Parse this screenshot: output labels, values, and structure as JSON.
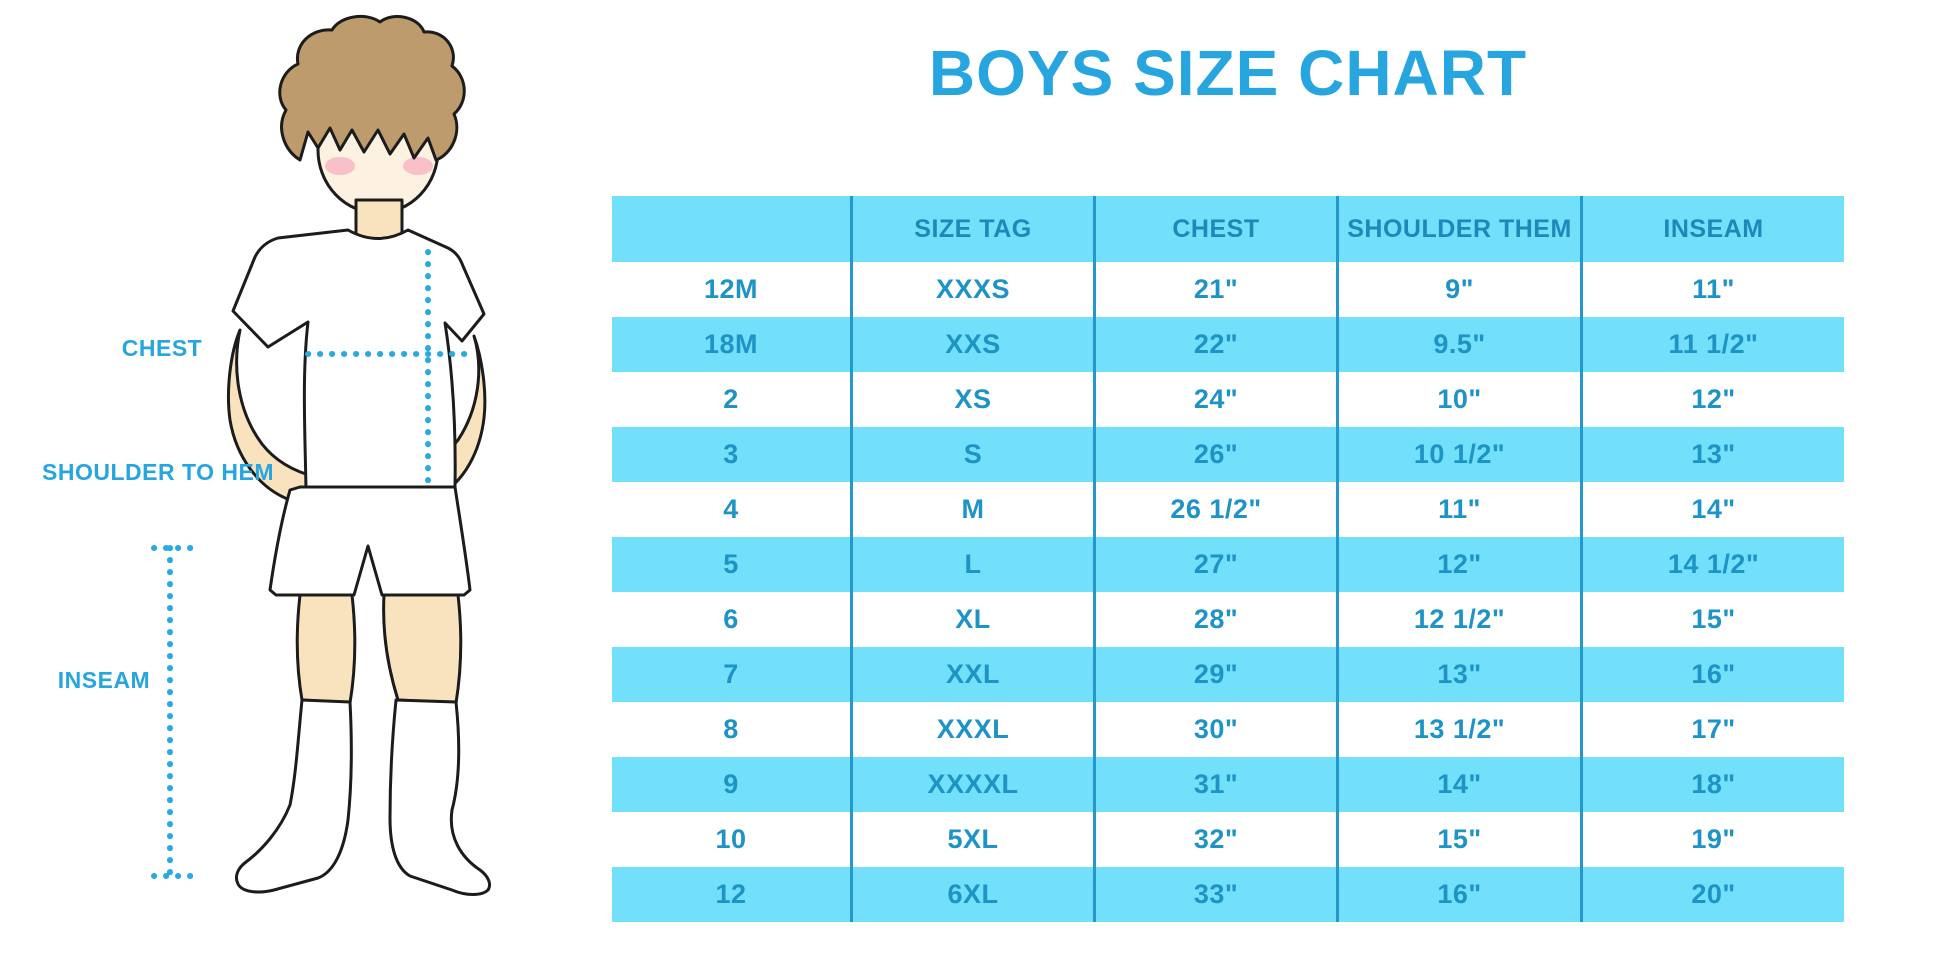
{
  "title": "BOYS SIZE CHART",
  "figure": {
    "labels": {
      "chest": "CHEST",
      "shoulder_to_hem": "SHOULDER TO HEM",
      "inseam": "INSEAM"
    }
  },
  "colors": {
    "accent_blue": "#27A5DE",
    "dotted_line_blue": "#29ABE2",
    "table_band_cyan": "#72E0FA",
    "table_text_blue": "#1D93C6",
    "header_text_blue": "#1C89B8",
    "divider_blue": "#2497CB",
    "hair_brown": "#BD9B6D",
    "skin": "#F9E3BE"
  },
  "chart_data": {
    "type": "table",
    "title": "BOYS SIZE CHART",
    "columns": [
      "",
      "SIZE TAG",
      "CHEST",
      "SHOULDER THEM",
      "INSEAM"
    ],
    "rows": [
      [
        "12M",
        "XXXS",
        "21\"",
        "9\"",
        "11\""
      ],
      [
        "18M",
        "XXS",
        "22\"",
        "9.5\"",
        "11 1/2\""
      ],
      [
        "2",
        "XS",
        "24\"",
        "10\"",
        "12\""
      ],
      [
        "3",
        "S",
        "26\"",
        "10 1/2\"",
        "13\""
      ],
      [
        "4",
        "M",
        "26 1/2\"",
        "11\"",
        "14\""
      ],
      [
        "5",
        "L",
        "27\"",
        "12\"",
        "14 1/2\""
      ],
      [
        "6",
        "XL",
        "28\"",
        "12 1/2\"",
        "15\""
      ],
      [
        "7",
        "XXL",
        "29\"",
        "13\"",
        "16\""
      ],
      [
        "8",
        "XXXL",
        "30\"",
        "13 1/2\"",
        "17\""
      ],
      [
        "9",
        "XXXXL",
        "31\"",
        "14\"",
        "18\""
      ],
      [
        "10",
        "5XL",
        "32\"",
        "15\"",
        "19\""
      ],
      [
        "12",
        "6XL",
        "33\"",
        "16\"",
        "20\""
      ]
    ],
    "layout": {
      "header_fill": "cyan band",
      "row_striping": "alternating white / cyan, first data row white",
      "column_dividers": true,
      "outer_border": false
    }
  }
}
